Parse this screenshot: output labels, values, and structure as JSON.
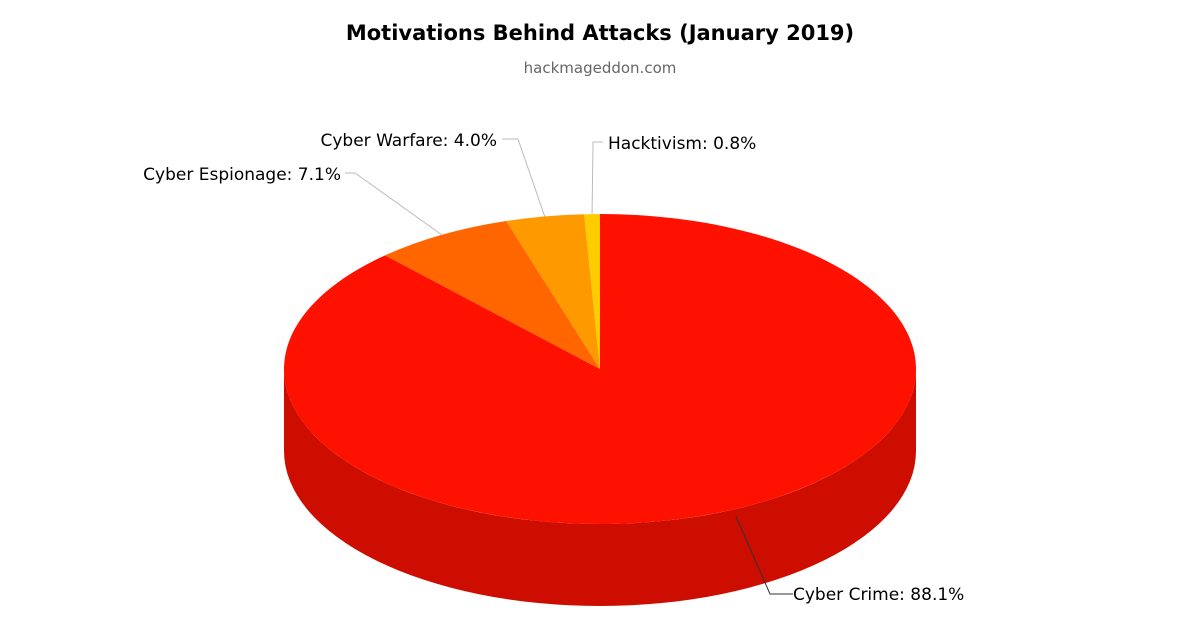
{
  "chart_data": {
    "type": "pie",
    "title": "Motivations Behind Attacks (January 2019)",
    "subtitle": "hackmageddon.com",
    "three_d": true,
    "slices": [
      {
        "name": "Cyber Crime",
        "value": 88.1,
        "label": "Cyber Crime: 88.1%",
        "color": "#ff1100",
        "side_color": "#cc0d00",
        "leader_color": "#333333"
      },
      {
        "name": "Cyber Espionage",
        "value": 7.1,
        "label": "Cyber Espionage: 7.1%",
        "color": "#ff6600",
        "side_color": "#cc5200",
        "leader_color": "#bbbbbb"
      },
      {
        "name": "Cyber Warfare",
        "value": 4.0,
        "label": "Cyber Warfare: 4.0%",
        "color": "#ff9900",
        "side_color": "#cc7a00",
        "leader_color": "#bbbbbb"
      },
      {
        "name": "Hacktivism",
        "value": 0.8,
        "label": "Hacktivism: 0.8%",
        "color": "#ffcc00",
        "side_color": "#ccaa00",
        "leader_color": "#bbbbbb"
      }
    ]
  }
}
